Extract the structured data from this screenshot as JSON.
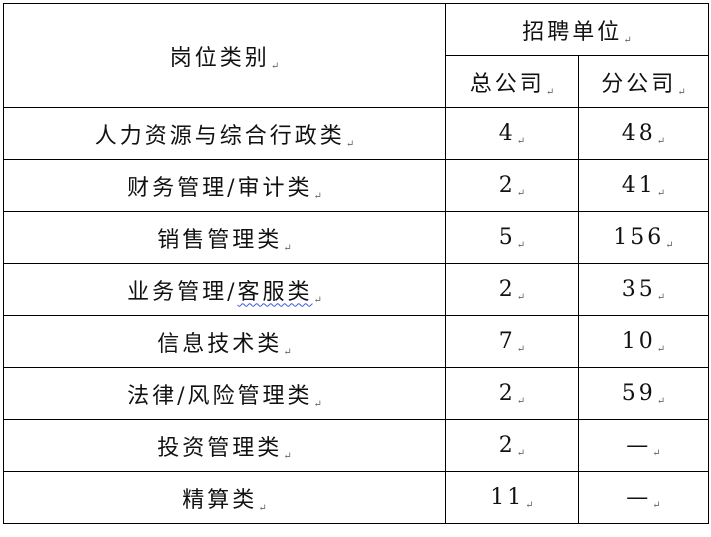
{
  "table": {
    "header": {
      "category": "岗位类别",
      "group": "招聘单位",
      "sub": [
        "总公司",
        "分公司"
      ]
    },
    "rows": [
      {
        "category": "人力资源与综合行政类",
        "hq": "4",
        "branch": "48"
      },
      {
        "category": "财务管理/审计类",
        "hq": "2",
        "branch": "41"
      },
      {
        "category": "销售管理类",
        "hq": "5",
        "branch": "156"
      },
      {
        "category_main": "业务管理/",
        "category_flagged": "客服类",
        "hq": "2",
        "branch": "35"
      },
      {
        "category": "信息技术类",
        "hq": "7",
        "branch": "10"
      },
      {
        "category": "法律/风险管理类",
        "hq": "2",
        "branch": "59"
      },
      {
        "category": "投资管理类",
        "hq": "2",
        "branch": "—"
      },
      {
        "category": "精算类",
        "hq": "11",
        "branch": "—"
      }
    ],
    "paragraph_mark": "↵"
  }
}
